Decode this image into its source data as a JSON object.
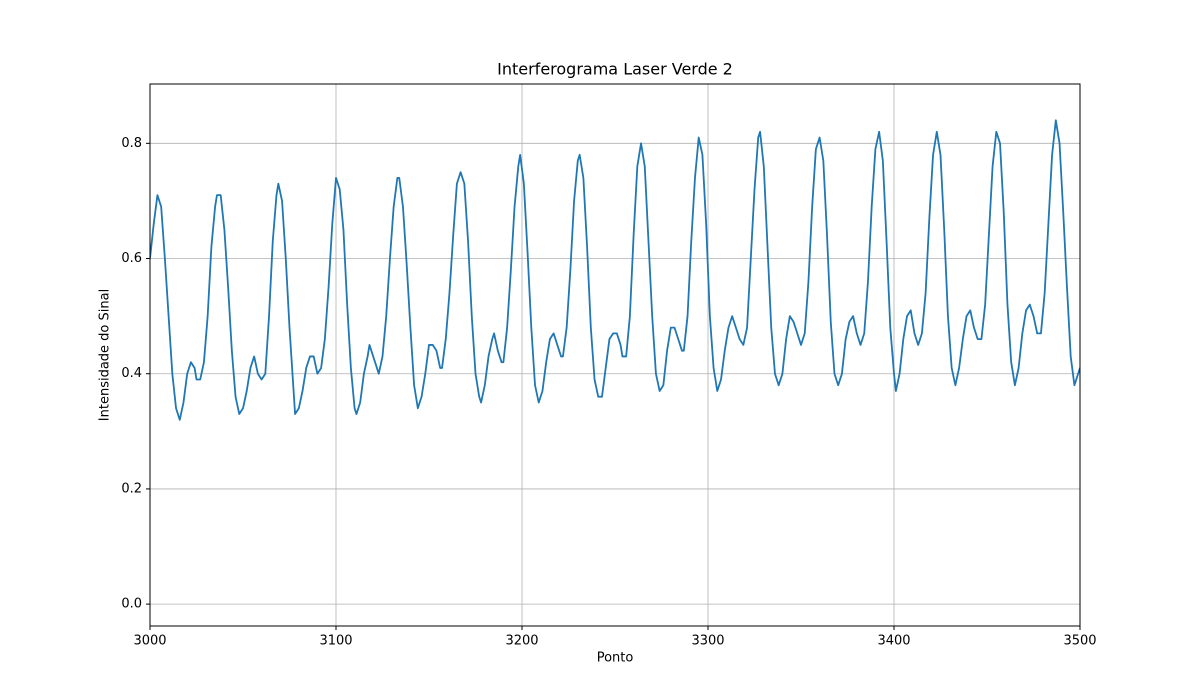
{
  "chart_data": {
    "type": "line",
    "title": "Interferograma Laser Verde 2",
    "x_label": "Ponto",
    "y_label": "Intensidade do Sinal",
    "color": "#1f77b4",
    "grid": true,
    "xlim": [
      3000,
      3500
    ],
    "ylim": [
      -0.038,
      0.903
    ],
    "xticks": [
      3000,
      3100,
      3200,
      3300,
      3400,
      3500
    ],
    "yticks": [
      {
        "value": 0,
        "label": "0.0"
      },
      0.2,
      0.4,
      0.6,
      0.8
    ],
    "x": [
      3000,
      3002,
      3004,
      3006,
      3008,
      3010,
      3012,
      3014,
      3016,
      3018,
      3020,
      3022,
      3024,
      3025,
      3027,
      3029,
      3031,
      3033,
      3035,
      3036,
      3038,
      3040,
      3042,
      3044,
      3046,
      3048,
      3050,
      3052,
      3054,
      3056,
      3058,
      3060,
      3062,
      3064,
      3066,
      3068,
      3069,
      3071,
      3073,
      3075,
      3077,
      3078,
      3080,
      3082,
      3084,
      3086,
      3088,
      3090,
      3092,
      3094,
      3096,
      3098,
      3100,
      3102,
      3104,
      3106,
      3108,
      3110,
      3111,
      3113,
      3115,
      3117,
      3118,
      3120,
      3122,
      3123,
      3125,
      3127,
      3129,
      3131,
      3133,
      3134,
      3136,
      3138,
      3140,
      3142,
      3144,
      3146,
      3148,
      3150,
      3152,
      3154,
      3156,
      3157,
      3159,
      3161,
      3163,
      3165,
      3167,
      3169,
      3171,
      3173,
      3175,
      3177,
      3178,
      3180,
      3182,
      3184,
      3185,
      3187,
      3189,
      3190,
      3192,
      3194,
      3196,
      3198,
      3199,
      3201,
      3203,
      3205,
      3207,
      3209,
      3211,
      3213,
      3215,
      3217,
      3219,
      3221,
      3222,
      3224,
      3226,
      3228,
      3230,
      3231,
      3233,
      3235,
      3237,
      3239,
      3241,
      3243,
      3245,
      3247,
      3249,
      3251,
      3253,
      3254,
      3256,
      3258,
      3260,
      3262,
      3264,
      3266,
      3268,
      3270,
      3272,
      3274,
      3276,
      3278,
      3280,
      3282,
      3284,
      3286,
      3287,
      3289,
      3291,
      3293,
      3295,
      3297,
      3299,
      3301,
      3303,
      3305,
      3307,
      3309,
      3311,
      3313,
      3315,
      3317,
      3319,
      3321,
      3323,
      3325,
      3327,
      3328,
      3330,
      3332,
      3334,
      3336,
      3338,
      3340,
      3342,
      3344,
      3346,
      3348,
      3350,
      3352,
      3354,
      3356,
      3358,
      3360,
      3362,
      3364,
      3366,
      3368,
      3370,
      3372,
      3374,
      3376,
      3378,
      3380,
      3382,
      3384,
      3386,
      3388,
      3390,
      3392,
      3394,
      3396,
      3398,
      3400,
      3401,
      3403,
      3405,
      3407,
      3409,
      3411,
      3413,
      3415,
      3417,
      3419,
      3421,
      3423,
      3425,
      3427,
      3429,
      3431,
      3433,
      3435,
      3437,
      3439,
      3441,
      3443,
      3445,
      3447,
      3449,
      3451,
      3453,
      3455,
      3457,
      3459,
      3461,
      3463,
      3465,
      3467,
      3469,
      3471,
      3473,
      3475,
      3477,
      3479,
      3481,
      3483,
      3485,
      3487,
      3489,
      3491,
      3493,
      3495,
      3497,
      3499,
      3500
    ],
    "values": [
      0.6,
      0.66,
      0.71,
      0.69,
      0.6,
      0.5,
      0.4,
      0.34,
      0.32,
      0.35,
      0.4,
      0.42,
      0.41,
      0.39,
      0.39,
      0.42,
      0.5,
      0.62,
      0.69,
      0.71,
      0.71,
      0.65,
      0.55,
      0.44,
      0.36,
      0.33,
      0.34,
      0.37,
      0.41,
      0.43,
      0.4,
      0.39,
      0.4,
      0.5,
      0.63,
      0.71,
      0.73,
      0.7,
      0.6,
      0.48,
      0.38,
      0.33,
      0.34,
      0.37,
      0.41,
      0.43,
      0.43,
      0.4,
      0.41,
      0.46,
      0.55,
      0.66,
      0.74,
      0.72,
      0.65,
      0.52,
      0.41,
      0.34,
      0.33,
      0.35,
      0.4,
      0.43,
      0.45,
      0.43,
      0.41,
      0.4,
      0.43,
      0.5,
      0.6,
      0.69,
      0.74,
      0.74,
      0.69,
      0.59,
      0.48,
      0.38,
      0.34,
      0.36,
      0.4,
      0.45,
      0.45,
      0.44,
      0.41,
      0.41,
      0.46,
      0.54,
      0.64,
      0.73,
      0.75,
      0.73,
      0.63,
      0.5,
      0.4,
      0.36,
      0.35,
      0.38,
      0.43,
      0.46,
      0.47,
      0.44,
      0.42,
      0.42,
      0.48,
      0.58,
      0.69,
      0.76,
      0.78,
      0.73,
      0.61,
      0.48,
      0.38,
      0.35,
      0.37,
      0.42,
      0.46,
      0.47,
      0.45,
      0.43,
      0.43,
      0.48,
      0.58,
      0.7,
      0.77,
      0.78,
      0.74,
      0.62,
      0.48,
      0.39,
      0.36,
      0.36,
      0.41,
      0.46,
      0.47,
      0.47,
      0.45,
      0.43,
      0.43,
      0.5,
      0.64,
      0.76,
      0.8,
      0.76,
      0.63,
      0.5,
      0.4,
      0.37,
      0.38,
      0.44,
      0.48,
      0.48,
      0.46,
      0.44,
      0.44,
      0.5,
      0.63,
      0.74,
      0.81,
      0.78,
      0.66,
      0.5,
      0.41,
      0.37,
      0.39,
      0.44,
      0.48,
      0.5,
      0.48,
      0.46,
      0.45,
      0.48,
      0.6,
      0.72,
      0.81,
      0.82,
      0.76,
      0.62,
      0.48,
      0.4,
      0.38,
      0.4,
      0.46,
      0.5,
      0.49,
      0.47,
      0.45,
      0.47,
      0.56,
      0.69,
      0.79,
      0.81,
      0.77,
      0.64,
      0.49,
      0.4,
      0.38,
      0.4,
      0.46,
      0.49,
      0.5,
      0.47,
      0.45,
      0.47,
      0.56,
      0.69,
      0.79,
      0.82,
      0.77,
      0.63,
      0.48,
      0.4,
      0.37,
      0.4,
      0.46,
      0.5,
      0.51,
      0.47,
      0.45,
      0.47,
      0.54,
      0.67,
      0.78,
      0.82,
      0.78,
      0.65,
      0.5,
      0.41,
      0.38,
      0.41,
      0.46,
      0.5,
      0.51,
      0.48,
      0.46,
      0.46,
      0.52,
      0.64,
      0.76,
      0.82,
      0.8,
      0.68,
      0.52,
      0.42,
      0.38,
      0.41,
      0.47,
      0.51,
      0.52,
      0.5,
      0.47,
      0.47,
      0.54,
      0.66,
      0.78,
      0.84,
      0.8,
      0.68,
      0.55,
      0.43,
      0.38,
      0.4,
      0.41
    ]
  }
}
